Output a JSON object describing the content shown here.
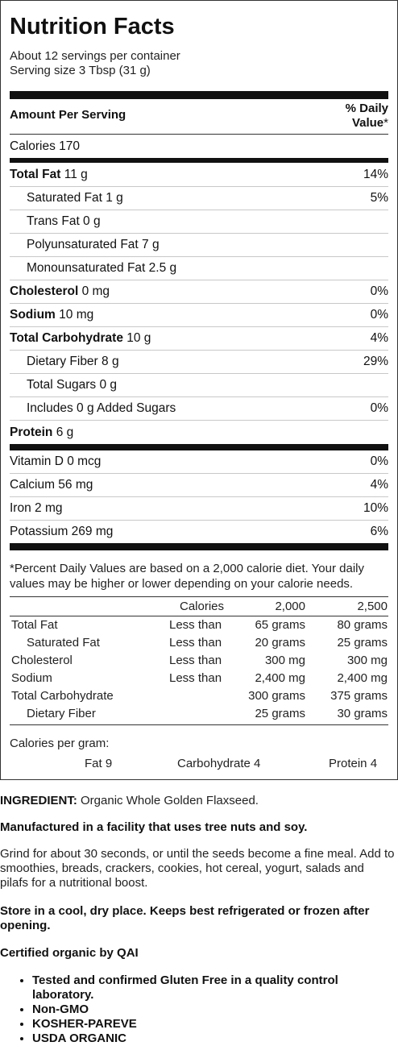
{
  "label": {
    "title": "Nutrition Facts",
    "servings_per_container": "About 12 servings per container",
    "serving_size": "Serving size 3 Tbsp (31 g)",
    "amount_per_serving": "Amount Per Serving",
    "daily_value_header_line1": "% Daily",
    "daily_value_header_line2": "Value",
    "daily_value_star": "*",
    "calories": "Calories 170",
    "nutrients": [
      {
        "name": "Total Fat",
        "amount": " 11 g",
        "dv": "14%"
      },
      {
        "name": "Saturated Fat 1 g",
        "amount": "",
        "dv": "5%"
      },
      {
        "name": "Trans Fat 0 g",
        "amount": "",
        "dv": ""
      },
      {
        "name": "Polyunsaturated Fat 7 g",
        "amount": "",
        "dv": ""
      },
      {
        "name": "Monounsaturated Fat 2.5 g",
        "amount": "",
        "dv": ""
      },
      {
        "name": "Cholesterol",
        "amount": " 0 mg",
        "dv": "0%"
      },
      {
        "name": "Sodium",
        "amount": " 10 mg",
        "dv": "0%"
      },
      {
        "name": "Total Carbohydrate",
        "amount": " 10 g",
        "dv": "4%"
      },
      {
        "name": "Dietary Fiber 8 g",
        "amount": "",
        "dv": "29%"
      },
      {
        "name": "Total Sugars 0 g",
        "amount": "",
        "dv": ""
      },
      {
        "name": "Includes 0 g Added Sugars",
        "amount": "",
        "dv": "0%"
      },
      {
        "name": "Protein",
        "amount": " 6 g",
        "dv": ""
      }
    ],
    "vitamins": [
      {
        "name": "Vitamin D 0 mcg",
        "dv": "0%"
      },
      {
        "name": "Calcium 56 mg",
        "dv": "4%"
      },
      {
        "name": "Iron 2 mg",
        "dv": "10%"
      },
      {
        "name": "Potassium 269 mg",
        "dv": "6%"
      }
    ],
    "footnote": "*Percent Daily Values are based on a 2,000 calorie diet. Your daily values may be higher or lower depending on your calorie needs.",
    "footnote_table": {
      "header": [
        "Calories",
        "2,000",
        "2,500"
      ],
      "rows": [
        {
          "name": "Total Fat",
          "limit": "Less than",
          "v2000": "65 grams",
          "v2500": "80 grams"
        },
        {
          "name": "Saturated Fat",
          "limit": "Less than",
          "v2000": "20 grams",
          "v2500": "25 grams"
        },
        {
          "name": "Cholesterol",
          "limit": "Less than",
          "v2000": "300 mg",
          "v2500": "300 mg"
        },
        {
          "name": "Sodium",
          "limit": "Less than",
          "v2000": "2,400 mg",
          "v2500": "2,400 mg"
        },
        {
          "name": "Total Carbohydrate",
          "limit": "",
          "v2000": "300 grams",
          "v2500": "375 grams"
        },
        {
          "name": "Dietary Fiber",
          "limit": "",
          "v2000": "25 grams",
          "v2500": "30 grams"
        }
      ]
    },
    "calories_per_gram": "Calories per gram:",
    "cpg_fat": "Fat 9",
    "cpg_carb": "Carbohydrate 4",
    "cpg_protein": "Protein 4"
  },
  "info": {
    "ingredient_label": "INGREDIENT:",
    "ingredient_text": " Organic Whole Golden Flaxseed.",
    "facility": "Manufactured in a facility that uses tree nuts and soy.",
    "directions": "Grind for about 30 seconds, or until the seeds become a fine meal. Add to smoothies, breads, crackers, cookies, hot cereal, yogurt, salads and pilafs for a nutritional boost.",
    "storage": "Store in a cool, dry place. Keeps best refrigerated or frozen after opening.",
    "certified": "Certified organic by QAI",
    "features": [
      "Tested and confirmed Gluten Free in a quality control laboratory.",
      "Non-GMO",
      "KOSHER-PAREVE",
      "USDA ORGANIC"
    ]
  }
}
